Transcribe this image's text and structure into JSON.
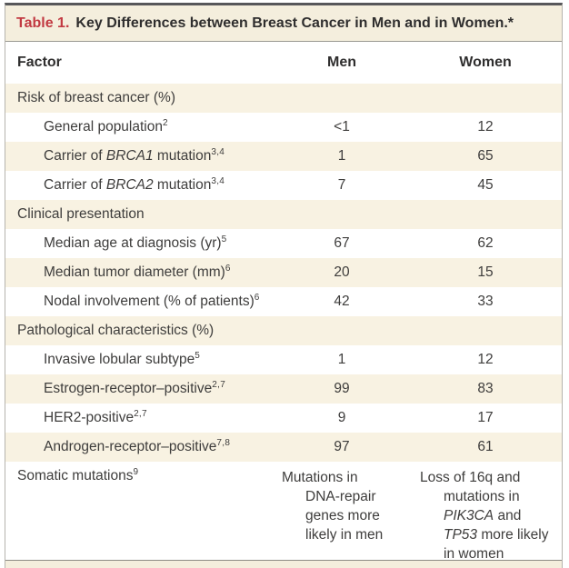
{
  "table": {
    "title": {
      "label": "Table 1.",
      "text": "Key Differences between Breast Cancer in Men and in Women.*"
    },
    "columns": {
      "factor": "Factor",
      "men": "Men",
      "women": "Women"
    },
    "rows": [
      {
        "type": "section",
        "label": [
          {
            "t": "Risk of breast cancer (%)"
          }
        ]
      },
      {
        "type": "item",
        "label": [
          {
            "t": "General population"
          }
        ],
        "sup": "2",
        "men": "<1",
        "women": "12"
      },
      {
        "type": "item",
        "label": [
          {
            "t": "Carrier of "
          },
          {
            "t": "BRCA1",
            "i": true
          },
          {
            "t": " mutation"
          }
        ],
        "sup": "3,4",
        "men": "1",
        "women": "65"
      },
      {
        "type": "item",
        "label": [
          {
            "t": "Carrier of "
          },
          {
            "t": "BRCA2",
            "i": true
          },
          {
            "t": " mutation"
          }
        ],
        "sup": "3,4",
        "men": "7",
        "women": "45"
      },
      {
        "type": "section",
        "label": [
          {
            "t": "Clinical presentation"
          }
        ]
      },
      {
        "type": "item",
        "label": [
          {
            "t": "Median age at diagnosis (yr)"
          }
        ],
        "sup": "5",
        "men": "67",
        "women": "62"
      },
      {
        "type": "item",
        "label": [
          {
            "t": "Median tumor diameter (mm)"
          }
        ],
        "sup": "6",
        "men": "20",
        "women": "15"
      },
      {
        "type": "item",
        "label": [
          {
            "t": "Nodal involvement (% of patients)"
          }
        ],
        "sup": "6",
        "men": "42",
        "women": "33"
      },
      {
        "type": "section",
        "label": [
          {
            "t": "Pathological characteristics (%)"
          }
        ]
      },
      {
        "type": "item",
        "label": [
          {
            "t": "Invasive lobular subtype"
          }
        ],
        "sup": "5",
        "men": "1",
        "women": "12"
      },
      {
        "type": "item",
        "label": [
          {
            "t": "Estrogen-receptor–positive"
          }
        ],
        "sup": "2,7",
        "men": "99",
        "women": "83"
      },
      {
        "type": "item",
        "label": [
          {
            "t": "HER2-positive"
          }
        ],
        "sup": "2,7",
        "men": "9",
        "women": "17"
      },
      {
        "type": "item",
        "label": [
          {
            "t": "Androgen-receptor–positive"
          }
        ],
        "sup": "7,8",
        "men": "97",
        "women": "61"
      },
      {
        "type": "tall",
        "label": [
          {
            "t": "Somatic mutations"
          }
        ],
        "sup": "9",
        "men_lines": [
          [
            {
              "t": "Mutations in"
            }
          ],
          [
            {
              "t": "DNA-repair"
            }
          ],
          [
            {
              "t": "genes more"
            }
          ],
          [
            {
              "t": "likely in men"
            }
          ]
        ],
        "women_lines": [
          [
            {
              "t": "Loss of 16q and"
            }
          ],
          [
            {
              "t": "mutations in"
            }
          ],
          [
            {
              "t": "PIK3CA",
              "i": true
            },
            {
              "t": " and"
            }
          ],
          [
            {
              "t": "TP53",
              "i": true
            },
            {
              "t": " more likely"
            }
          ],
          [
            {
              "t": "in women"
            }
          ]
        ]
      }
    ],
    "colors": {
      "accent_red": "#c23a42",
      "row_shade": "#f8f2e2",
      "title_bar": "#f4eedd",
      "top_border": "#57575a",
      "text": "#3e3d3c"
    }
  }
}
